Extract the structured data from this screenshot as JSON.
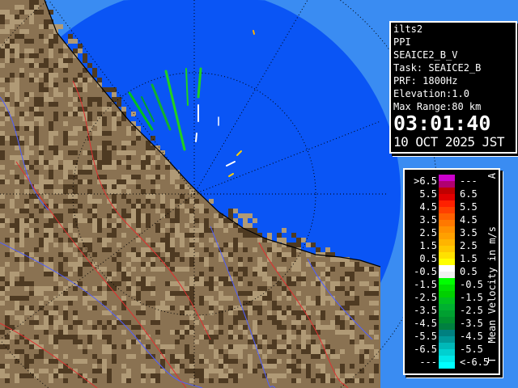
{
  "info": {
    "site": "ilts2",
    "scan_type": "PPI",
    "product": "SEAICE2_B_V",
    "task": "Task: SEAICE2_B",
    "prf": "PRF: 1800Hz",
    "elevation": "Elevation:1.0",
    "max_range": "Max Range:80 km",
    "time": "03:01:40",
    "date": "10 OCT 2025 JST"
  },
  "legend": {
    "title": "Mean Velocity in m/s",
    "top_marker": "A",
    "bottom_marker": "T",
    "rows": [
      {
        "lo": ">6.5",
        "hi": "---",
        "colors": [
          "#cc00cc",
          "#b00070"
        ]
      },
      {
        "lo": "5.5",
        "hi": "6.5",
        "colors": [
          "#c00000",
          "#e00000"
        ]
      },
      {
        "lo": "4.5",
        "hi": "5.5",
        "colors": [
          "#ff2000",
          "#ff4000"
        ]
      },
      {
        "lo": "3.5",
        "hi": "4.5",
        "colors": [
          "#ff6000",
          "#ff7800"
        ]
      },
      {
        "lo": "2.5",
        "hi": "3.5",
        "colors": [
          "#ff9000",
          "#ffa000"
        ]
      },
      {
        "lo": "1.5",
        "hi": "2.5",
        "colors": [
          "#ffb400",
          "#ffc800"
        ]
      },
      {
        "lo": "0.5",
        "hi": "1.5",
        "colors": [
          "#ffe000",
          "#ffff00"
        ]
      },
      {
        "lo": "-0.5",
        "hi": "0.5",
        "colors": [
          "#ffffff",
          "#f0f0f0"
        ]
      },
      {
        "lo": "-1.5",
        "hi": "-0.5",
        "colors": [
          "#00ff00",
          "#00e000"
        ]
      },
      {
        "lo": "-2.5",
        "hi": "-1.5",
        "colors": [
          "#00d000",
          "#00c020"
        ]
      },
      {
        "lo": "-3.5",
        "hi": "-2.5",
        "colors": [
          "#00b030",
          "#00a030"
        ]
      },
      {
        "lo": "-4.5",
        "hi": "-3.5",
        "colors": [
          "#009030",
          "#008040"
        ]
      },
      {
        "lo": "-5.5",
        "hi": "-4.5",
        "colors": [
          "#008080",
          "#009898"
        ]
      },
      {
        "lo": "-6.5",
        "hi": "-5.5",
        "colors": [
          "#00b8b8",
          "#00d0d0"
        ]
      },
      {
        "lo": "---",
        "hi": "<-6.5",
        "colors": [
          "#00e8e8",
          "#00ffff"
        ]
      }
    ]
  },
  "colors": {
    "sea_inner": "#0a55f5",
    "sea_outer": "#3a8cf2",
    "land": "#8a7252"
  }
}
